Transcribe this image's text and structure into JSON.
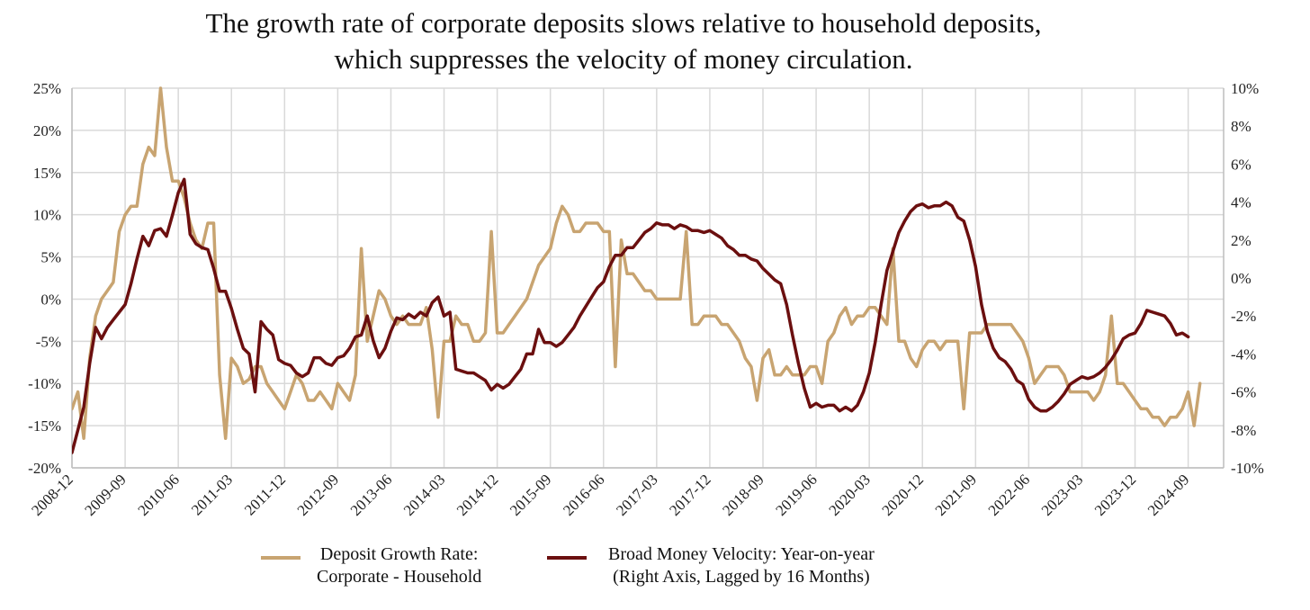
{
  "chart_data": {
    "type": "line",
    "title": [
      "The growth rate of corporate deposits slows relative to household deposits,",
      "which suppresses the velocity of money circulation."
    ],
    "x_tick_labels": [
      "2008-12",
      "2009-09",
      "2010-06",
      "2011-03",
      "2011-12",
      "2012-09",
      "2013-06",
      "2014-03",
      "2014-12",
      "2015-09",
      "2016-06",
      "2017-03",
      "2017-12",
      "2018-09",
      "2019-06",
      "2020-03",
      "2020-12",
      "2021-09",
      "2022-06",
      "2023-03",
      "2023-12",
      "2024-09"
    ],
    "left_axis": {
      "ticks": [
        "25%",
        "20%",
        "15%",
        "10%",
        "5%",
        "0%",
        "-5%",
        "-10%",
        "-15%",
        "-20%"
      ],
      "ylim": [
        -20,
        25
      ]
    },
    "right_axis": {
      "ticks": [
        "10%",
        "8%",
        "6%",
        "4%",
        "2%",
        "0%",
        "-2%",
        "-4%",
        "-6%",
        "-8%",
        "-10%"
      ],
      "ylim": [
        -10,
        10
      ]
    },
    "grid": true,
    "colors": {
      "corporate_household": "#c8a471",
      "velocity": "#6b0f0f",
      "grid": "#d9d9d9",
      "axis": "#bdbdbd"
    },
    "series": [
      {
        "name_lines": [
          "Deposit Growth Rate:",
          "Corporate - Household"
        ],
        "axis": "left",
        "x_start": "2008-12",
        "step_months": 1,
        "values": [
          -13,
          -11,
          -16.5,
          -7,
          -2,
          0,
          1,
          2,
          8,
          10,
          11,
          11,
          16,
          18,
          17,
          25,
          18,
          14,
          14,
          12,
          9,
          7,
          6,
          9,
          9,
          -9,
          -16.5,
          -7,
          -8,
          -10,
          -9.5,
          -8,
          -8,
          -10,
          -11,
          -12,
          -13,
          -11,
          -9,
          -10,
          -12,
          -12,
          -11,
          -12,
          -13,
          -10,
          -11,
          -12,
          -9,
          6,
          -5,
          -2,
          1,
          0,
          -2,
          -3,
          -2,
          -3,
          -3,
          -3,
          -1,
          -6,
          -14,
          -5,
          -5,
          -2,
          -3,
          -3,
          -5,
          -5,
          -4,
          8,
          -4,
          -4,
          -3,
          -2,
          -1,
          0,
          2,
          4,
          5,
          6,
          9,
          11,
          10,
          8,
          8,
          9,
          9,
          9,
          8,
          8,
          -8,
          7,
          3,
          3,
          2,
          1,
          1,
          0,
          0,
          0,
          0,
          0,
          8,
          -3,
          -3,
          -2,
          -2,
          -2,
          -3,
          -3,
          -4,
          -5,
          -7,
          -8,
          -12,
          -7,
          -6,
          -9,
          -9,
          -8,
          -9,
          -9,
          -9,
          -8,
          -8,
          -10,
          -5,
          -4,
          -2,
          -1,
          -3,
          -2,
          -2,
          -1,
          -1,
          -2,
          -3,
          6,
          -5,
          -5,
          -7,
          -8,
          -6,
          -5,
          -5,
          -6,
          -5,
          -5,
          -5,
          -13,
          -4,
          -4,
          -4,
          -3,
          -3,
          -3,
          -3,
          -3,
          -4,
          -5,
          -7,
          -10,
          -9,
          -8,
          -8,
          -8,
          -9,
          -11,
          -11,
          -11,
          -11,
          -12,
          -11,
          -9,
          -2,
          -10,
          -10,
          -11,
          -12,
          -13,
          -13,
          -14,
          -14,
          -15,
          -14,
          -14,
          -13,
          -11,
          -15,
          -10
        ]
      },
      {
        "name_lines": [
          "Broad Money Velocity: Year-on-year",
          "(Right Axis, Lagged by 16 Months)"
        ],
        "axis": "right",
        "x_start": "2008-12",
        "step_months": 1,
        "values": [
          -9.2,
          -8,
          -6.8,
          -4.5,
          -2.6,
          -3.2,
          -2.6,
          -2.2,
          -1.8,
          -1.4,
          -0.3,
          1,
          2.2,
          1.7,
          2.5,
          2.6,
          2.2,
          3.3,
          4.5,
          5.2,
          2.3,
          1.8,
          1.6,
          1.5,
          0.5,
          -0.7,
          -0.7,
          -1.6,
          -2.7,
          -3.7,
          -4,
          -6,
          -2.3,
          -2.7,
          -3,
          -4.3,
          -4.5,
          -4.6,
          -5,
          -5.2,
          -5,
          -4.2,
          -4.2,
          -4.5,
          -4.6,
          -4.2,
          -4.1,
          -3.7,
          -3.1,
          -3,
          -2,
          -3.3,
          -4.2,
          -3.7,
          -2.8,
          -2.1,
          -2.2,
          -1.9,
          -2.1,
          -1.8,
          -2,
          -1.3,
          -1,
          -2,
          -1.8,
          -4.8,
          -4.9,
          -5,
          -5,
          -5.2,
          -5.4,
          -5.9,
          -5.6,
          -5.8,
          -5.6,
          -5.2,
          -4.8,
          -4,
          -4,
          -2.7,
          -3.4,
          -3.4,
          -3.6,
          -3.4,
          -3,
          -2.6,
          -2,
          -1.5,
          -1,
          -0.5,
          -0.2,
          0.6,
          1.2,
          1.2,
          1.6,
          1.6,
          2,
          2.4,
          2.6,
          2.9,
          2.8,
          2.8,
          2.6,
          2.8,
          2.7,
          2.5,
          2.5,
          2.4,
          2.5,
          2.3,
          2.1,
          1.7,
          1.5,
          1.2,
          1.2,
          1,
          0.9,
          0.5,
          0.2,
          -0.1,
          -0.3,
          -1.4,
          -3,
          -4.5,
          -5.8,
          -6.8,
          -6.6,
          -6.8,
          -6.7,
          -6.7,
          -7,
          -6.8,
          -7,
          -6.7,
          -6,
          -5,
          -3.4,
          -1.4,
          0.4,
          1.4,
          2.4,
          3,
          3.5,
          3.8,
          3.9,
          3.7,
          3.8,
          3.8,
          4,
          3.8,
          3.2,
          3,
          2,
          0.6,
          -1.4,
          -2.8,
          -3.7,
          -4.2,
          -4.4,
          -4.8,
          -5.4,
          -5.6,
          -6.4,
          -6.8,
          -7,
          -7,
          -6.8,
          -6.5,
          -6.1,
          -5.6,
          -5.4,
          -5.2,
          -5.3,
          -5.2,
          -5,
          -4.7,
          -4.3,
          -3.8,
          -3.2,
          -3,
          -2.9,
          -2.4,
          -1.7,
          -1.8,
          -1.9,
          -2,
          -2.4,
          -3,
          -2.9,
          -3.1
        ]
      }
    ]
  }
}
